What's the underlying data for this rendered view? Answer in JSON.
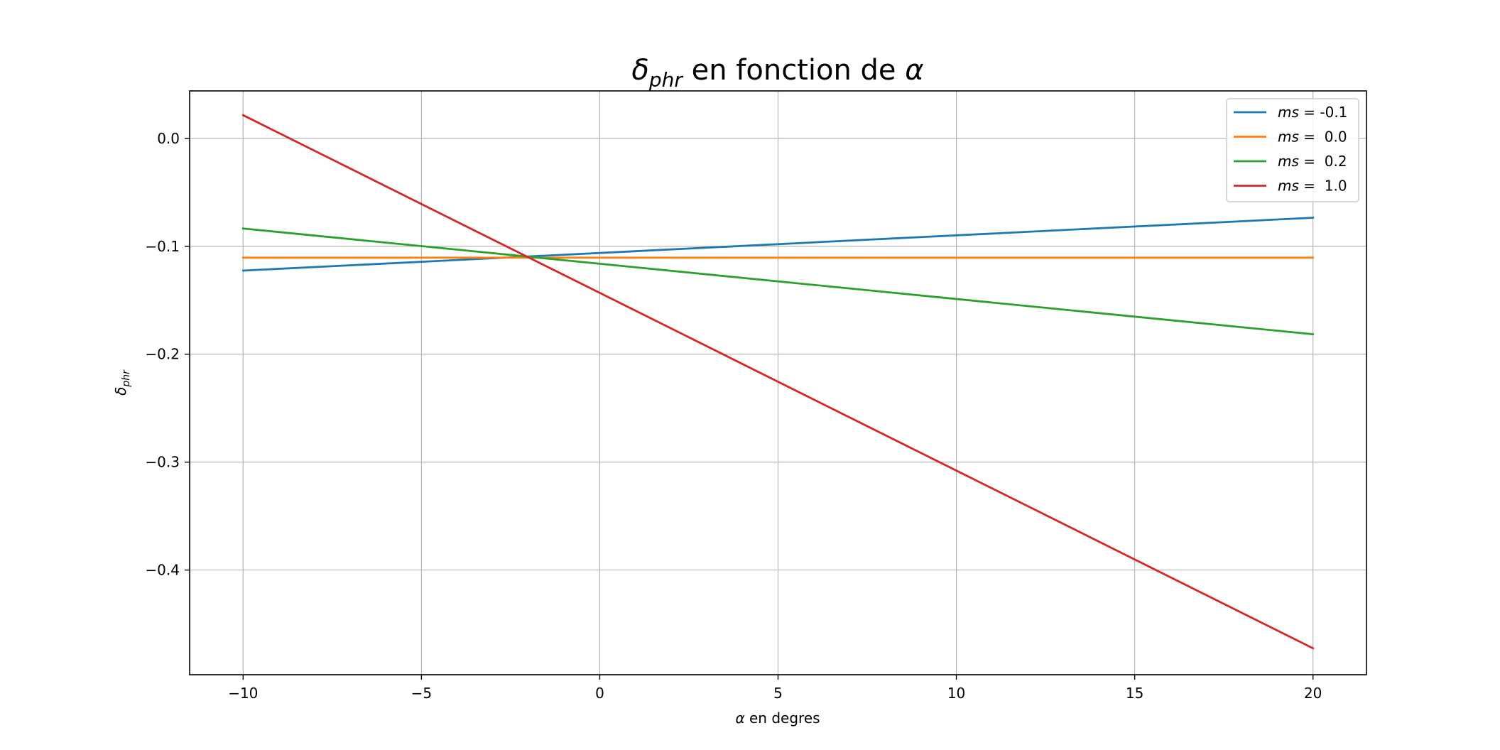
{
  "chart_data": {
    "type": "line",
    "title": {
      "main": "δ",
      "sub": "phr",
      "rest": " en fonction de ",
      "alpha": "α"
    },
    "xlabel": {
      "alpha": "α",
      "rest": " en degres"
    },
    "ylabel": {
      "main": "δ",
      "sub": "phr"
    },
    "xlim": [
      -11.5,
      21.5
    ],
    "ylim": [
      -0.497,
      0.044
    ],
    "xticks": [
      -10,
      -5,
      0,
      5,
      10,
      15,
      20
    ],
    "xtick_labels": [
      "−10",
      "−5",
      "0",
      "5",
      "10",
      "15",
      "20"
    ],
    "yticks": [
      0.0,
      -0.1,
      -0.2,
      -0.3,
      -0.4
    ],
    "ytick_labels": [
      "0.0",
      "−0.1",
      "−0.2",
      "−0.3",
      "−0.4"
    ],
    "grid": true,
    "legend_position": "top-right",
    "series": [
      {
        "name_var": "ms",
        "name_value": " = -0.1",
        "color": "#1f77b4",
        "x": [
          -10,
          20
        ],
        "y": [
          -0.1225,
          -0.0735
        ]
      },
      {
        "name_var": "ms",
        "name_value": " =  0.0",
        "color": "#ff7f0e",
        "x": [
          -10,
          20
        ],
        "y": [
          -0.1105,
          -0.1105
        ]
      },
      {
        "name_var": "ms",
        "name_value": " =  0.2",
        "color": "#2ca02c",
        "x": [
          -10,
          20
        ],
        "y": [
          -0.0835,
          -0.1815
        ]
      },
      {
        "name_var": "ms",
        "name_value": " =  1.0",
        "color": "#d62728",
        "x": [
          -10,
          20
        ],
        "y": [
          0.0215,
          -0.4725
        ]
      }
    ]
  }
}
